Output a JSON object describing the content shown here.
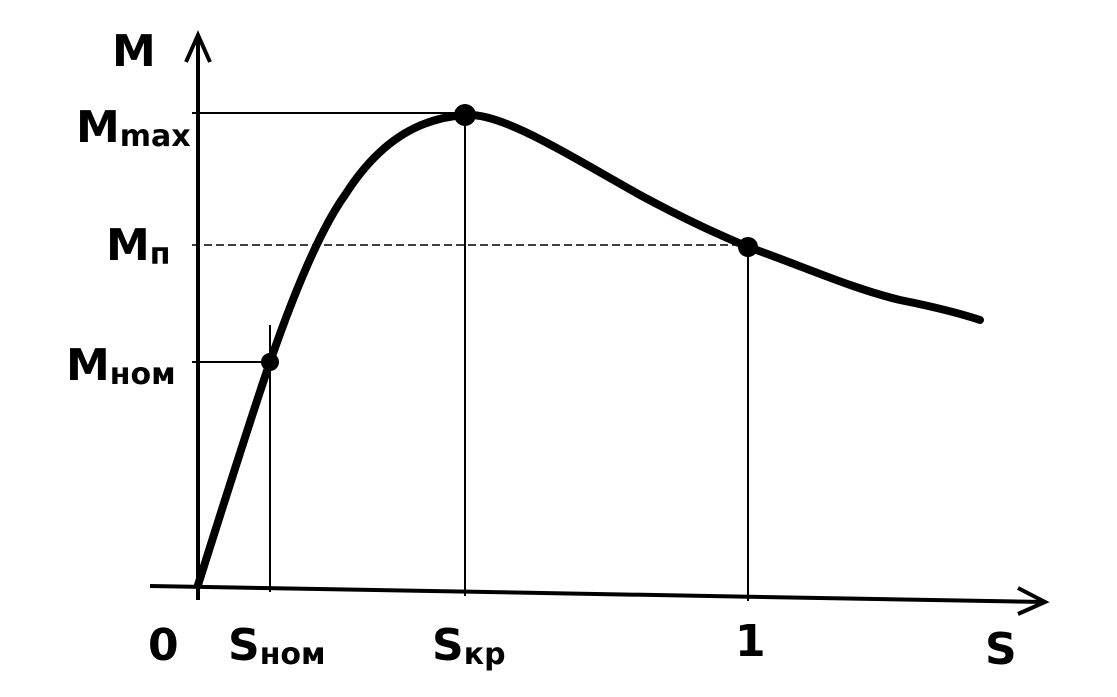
{
  "axes": {
    "y_label": "M",
    "x_label": "S",
    "origin": "0"
  },
  "y_marks": [
    {
      "base": "M",
      "sub": "max"
    },
    {
      "base": "M",
      "sub": "п"
    },
    {
      "base": "M",
      "sub": "ном"
    }
  ],
  "x_marks": [
    {
      "base": "S",
      "sub": "ном"
    },
    {
      "base": "S",
      "sub": "кр"
    },
    {
      "base": "1"
    }
  ]
}
